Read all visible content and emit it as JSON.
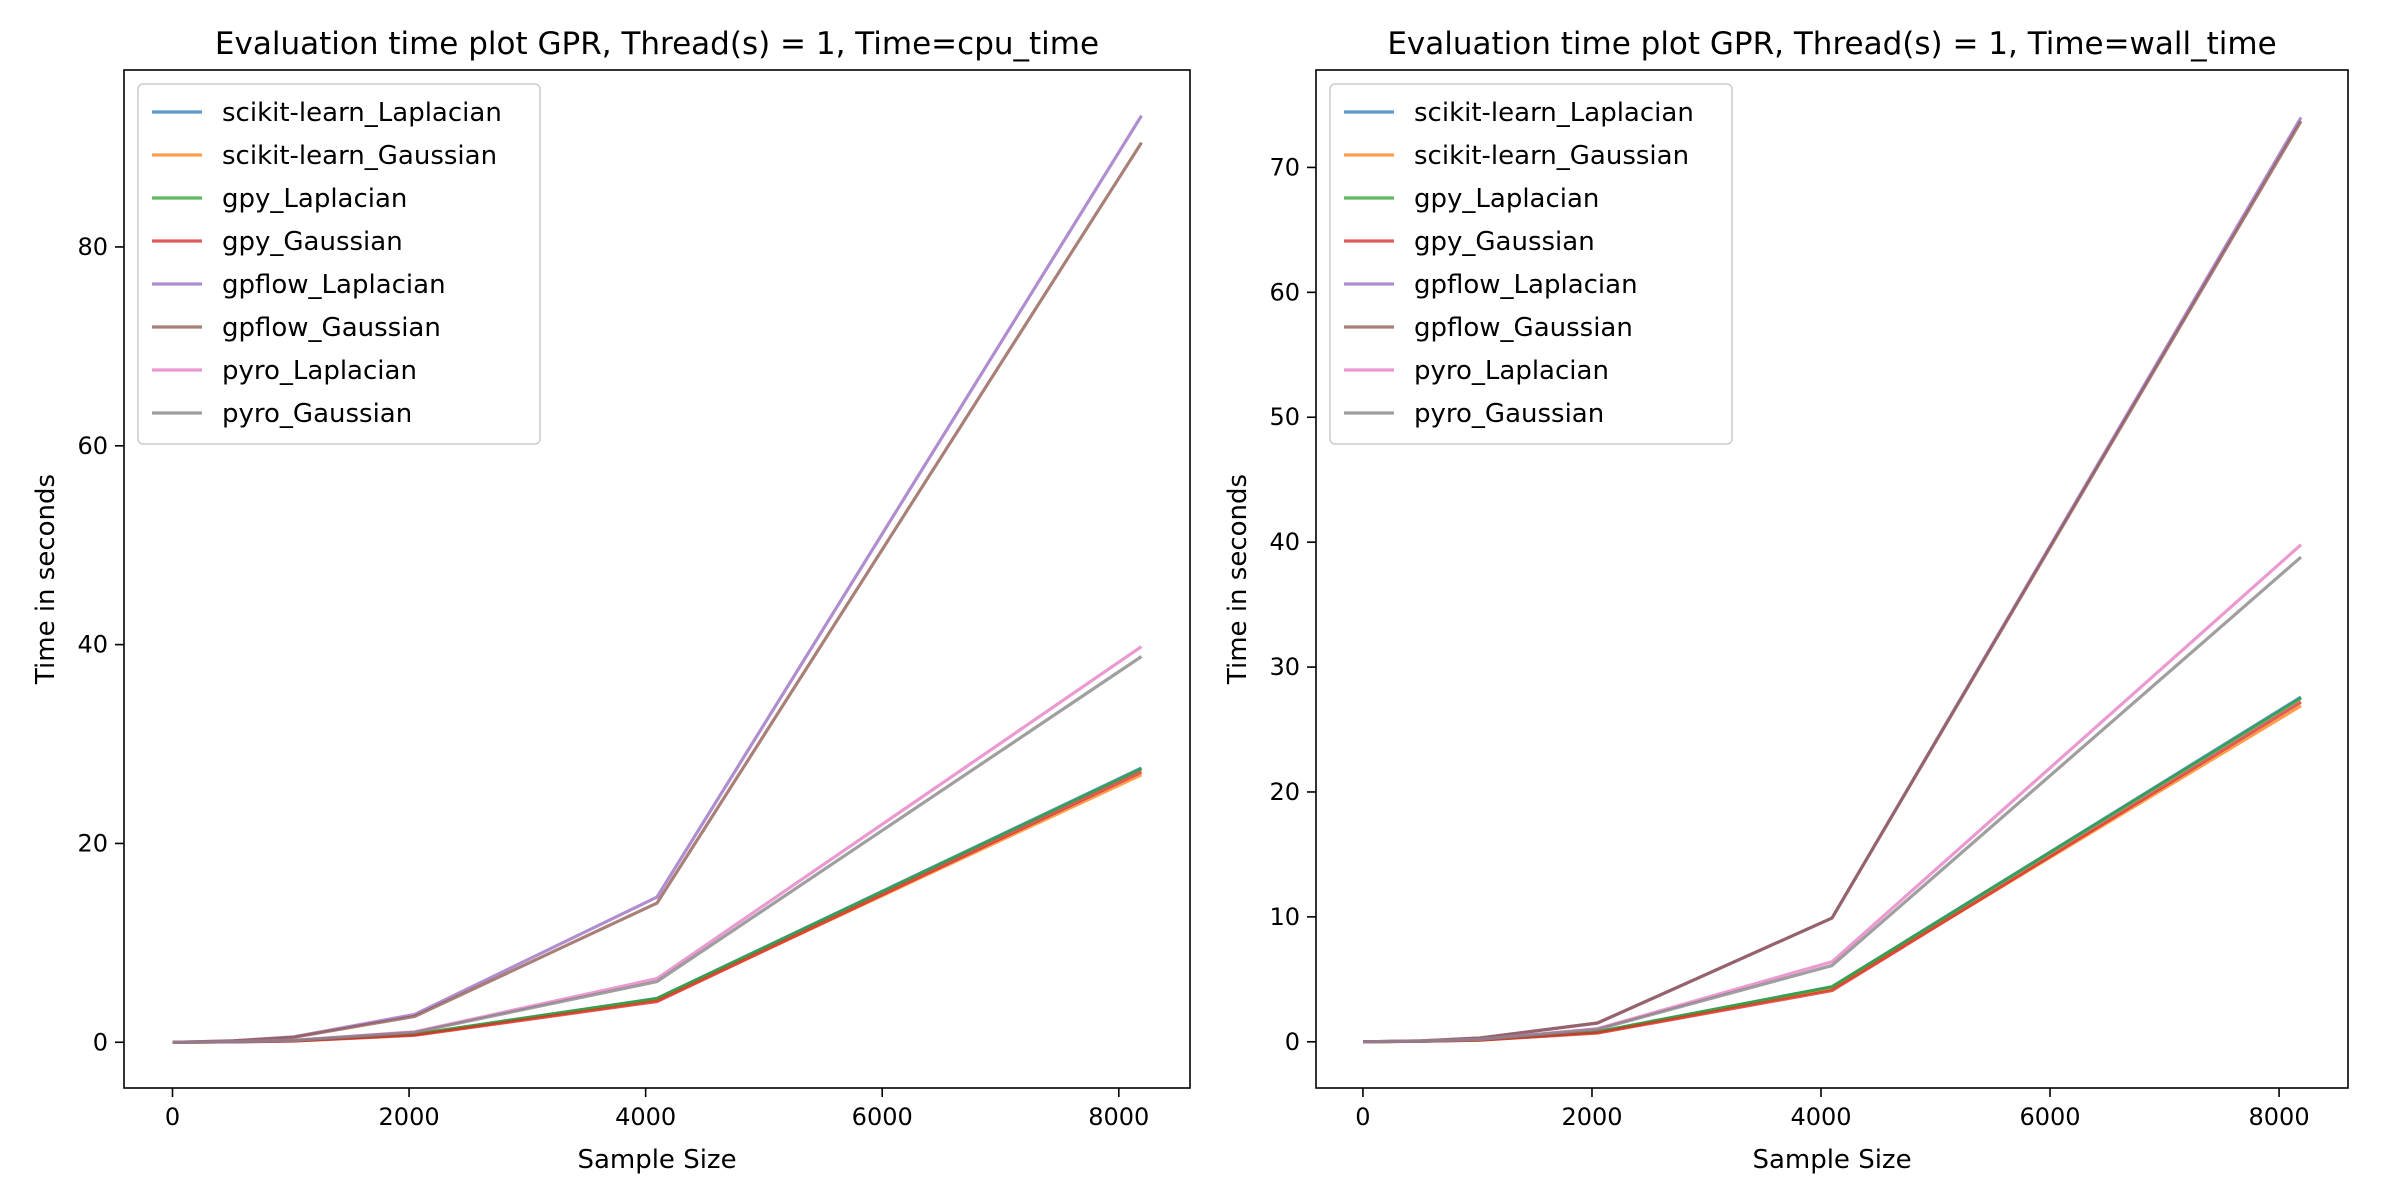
{
  "colors": {
    "scikit-learn_Laplacian": "#1f77b4",
    "scikit-learn_Gaussian": "#ff7f0e",
    "gpy_Laplacian": "#2ca02c",
    "gpy_Gaussian": "#d62728",
    "gpflow_Laplacian": "#9467bd",
    "gpflow_Gaussian": "#8c564b",
    "pyro_Laplacian": "#e377c2",
    "pyro_Gaussian": "#7f7f7f"
  },
  "chart_data": [
    {
      "type": "line",
      "title": "Evaluation time plot GPR, Thread(s) = 1, Time=cpu_time",
      "xlabel": "Sample Size",
      "ylabel": "Time in seconds",
      "xlim": [
        -410,
        8602
      ],
      "ylim": [
        -4.6,
        97.8
      ],
      "xticks": [
        0,
        2000,
        4000,
        6000,
        8000
      ],
      "yticks": [
        0,
        20,
        40,
        60,
        80
      ],
      "grid": false,
      "legend_position": "upper left",
      "x": [
        1,
        512,
        1024,
        2048,
        4096,
        8192
      ],
      "series": [
        {
          "name": "scikit-learn_Laplacian",
          "values": [
            0.0,
            0.05,
            0.15,
            0.8,
            4.4,
            27.6
          ]
        },
        {
          "name": "scikit-learn_Gaussian",
          "values": [
            0.0,
            0.05,
            0.14,
            0.75,
            4.2,
            26.9
          ]
        },
        {
          "name": "gpy_Laplacian",
          "values": [
            0.0,
            0.05,
            0.15,
            0.8,
            4.4,
            27.5
          ]
        },
        {
          "name": "gpy_Gaussian",
          "values": [
            0.0,
            0.04,
            0.13,
            0.7,
            4.1,
            27.2
          ]
        },
        {
          "name": "gpflow_Laplacian",
          "values": [
            0.0,
            0.15,
            0.55,
            2.8,
            14.6,
            93.2
          ]
        },
        {
          "name": "gpflow_Gaussian",
          "values": [
            0.0,
            0.14,
            0.5,
            2.6,
            14.0,
            90.5
          ]
        },
        {
          "name": "pyro_Laplacian",
          "values": [
            0.0,
            0.06,
            0.2,
            1.05,
            6.4,
            39.8
          ]
        },
        {
          "name": "pyro_Gaussian",
          "values": [
            0.0,
            0.06,
            0.19,
            1.0,
            6.1,
            38.8
          ]
        }
      ]
    },
    {
      "type": "line",
      "title": "Evaluation time plot GPR, Thread(s) = 1, Time=wall_time",
      "xlabel": "Sample Size",
      "ylabel": "Time in seconds",
      "xlim": [
        -410,
        8602
      ],
      "ylim": [
        -3.7,
        77.8
      ],
      "xticks": [
        0,
        2000,
        4000,
        6000,
        8000
      ],
      "yticks": [
        0,
        10,
        20,
        30,
        40,
        50,
        60,
        70
      ],
      "grid": false,
      "legend_position": "upper left",
      "x": [
        1,
        512,
        1024,
        2048,
        4096,
        8192
      ],
      "series": [
        {
          "name": "scikit-learn_Laplacian",
          "values": [
            0.0,
            0.05,
            0.15,
            0.8,
            4.4,
            27.6
          ]
        },
        {
          "name": "scikit-learn_Gaussian",
          "values": [
            0.0,
            0.05,
            0.14,
            0.75,
            4.2,
            26.9
          ]
        },
        {
          "name": "gpy_Laplacian",
          "values": [
            0.0,
            0.05,
            0.15,
            0.8,
            4.4,
            27.5
          ]
        },
        {
          "name": "gpy_Gaussian",
          "values": [
            0.0,
            0.04,
            0.13,
            0.7,
            4.1,
            27.2
          ]
        },
        {
          "name": "gpflow_Laplacian",
          "values": [
            0.0,
            0.08,
            0.3,
            1.5,
            9.9,
            74.0
          ]
        },
        {
          "name": "gpflow_Gaussian",
          "values": [
            0.0,
            0.08,
            0.3,
            1.5,
            9.9,
            73.7
          ]
        },
        {
          "name": "pyro_Laplacian",
          "values": [
            0.0,
            0.06,
            0.2,
            1.05,
            6.4,
            39.8
          ]
        },
        {
          "name": "pyro_Gaussian",
          "values": [
            0.0,
            0.06,
            0.19,
            1.0,
            6.1,
            38.8
          ]
        }
      ]
    }
  ]
}
